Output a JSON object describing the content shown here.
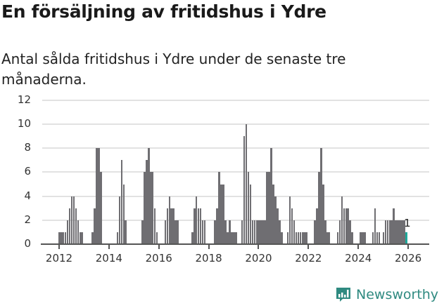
{
  "header": {
    "title": "En försäljning av fritidshus i Ydre",
    "subtitle": "Antal sålda fritidshus i Ydre under de senaste tre månaderna."
  },
  "colors": {
    "bar": "#6f6e72",
    "highlight": "#1ea89a",
    "grid": "#e2e2e2",
    "axis": "#555555",
    "brand": "#2f8a80"
  },
  "footer": {
    "brand": "Newsworthy",
    "logo_icon": "bar-chart-speech-bubble-icon"
  },
  "chart_data": {
    "type": "bar",
    "title": "En försäljning av fritidshus i Ydre",
    "subtitle": "Antal sålda fritidshus i Ydre under de senaste tre månaderna.",
    "xlabel": "",
    "ylabel": "",
    "ylim": [
      0,
      12
    ],
    "yticks": [
      0,
      2,
      4,
      6,
      8,
      10,
      12
    ],
    "xticks": [
      "2012",
      "2014",
      "2016",
      "2018",
      "2020",
      "2022",
      "2024",
      "2026"
    ],
    "grid": true,
    "legend": "none",
    "annotation": {
      "label": "1",
      "target": "last bar"
    },
    "start_month_index_note": "index 0 = Jan 2012, monthly series",
    "values": [
      1,
      1,
      1,
      1,
      2,
      3,
      4,
      4,
      3,
      2,
      1,
      1,
      0,
      0,
      0,
      0,
      1,
      3,
      8,
      8,
      6,
      0,
      0,
      0,
      0,
      0,
      0,
      0,
      1,
      4,
      7,
      5,
      2,
      0,
      0,
      0,
      0,
      0,
      0,
      0,
      2,
      6,
      7,
      8,
      6,
      6,
      3,
      1,
      0,
      0,
      0,
      2,
      3,
      4,
      3,
      3,
      2,
      2,
      0,
      0,
      0,
      0,
      0,
      0,
      1,
      3,
      4,
      3,
      3,
      2,
      2,
      0,
      0,
      0,
      0,
      2,
      3,
      6,
      5,
      5,
      2,
      1,
      2,
      1,
      1,
      1,
      0,
      0,
      2,
      9,
      10,
      6,
      5,
      2,
      2,
      2,
      2,
      2,
      2,
      2,
      6,
      6,
      8,
      5,
      4,
      3,
      2,
      1,
      0,
      0,
      1,
      4,
      3,
      2,
      1,
      1,
      1,
      1,
      1,
      1,
      0,
      0,
      0,
      2,
      3,
      6,
      8,
      5,
      2,
      1,
      1,
      0,
      0,
      0,
      1,
      2,
      4,
      3,
      3,
      3,
      2,
      1,
      0,
      0,
      0,
      1,
      1,
      1,
      0,
      0,
      0,
      1,
      3,
      1,
      1,
      0,
      1,
      2,
      2,
      2,
      2,
      3,
      2,
      2,
      2,
      2,
      2,
      1
    ]
  }
}
